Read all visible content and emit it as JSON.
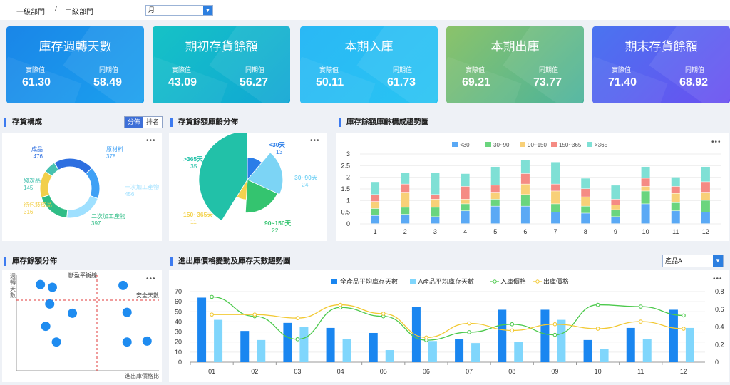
{
  "header": {
    "crumb1": "一級部門",
    "sep": "/",
    "crumb2": "二級部門",
    "period_value": "月"
  },
  "kpis": [
    {
      "title": "庫存週轉天數",
      "actual_label": "實際值",
      "actual": "61.30",
      "yoy_label": "同期值",
      "yoy": "58.49",
      "grad": [
        "#1a86e8",
        "#1aa0ee"
      ]
    },
    {
      "title": "期初存貨餘額",
      "actual_label": "實際值",
      "actual": "43.09",
      "yoy_label": "同期值",
      "yoy": "56.27",
      "grad": [
        "#16c2c6",
        "#0fa6d4"
      ]
    },
    {
      "title": "本期入庫",
      "actual_label": "實際值",
      "actual": "50.11",
      "yoy_label": "同期值",
      "yoy": "61.73",
      "grad": [
        "#2ab8f5",
        "#28c4f2"
      ]
    },
    {
      "title": "本期出庫",
      "actual_label": "實際值",
      "actual": "69.21",
      "yoy_label": "同期值",
      "yoy": "73.77",
      "grad": [
        "#8bc36a",
        "#4ab39c"
      ]
    },
    {
      "title": "期末存貨餘額",
      "actual_label": "實際值",
      "actual": "71.40",
      "yoy_label": "同期值",
      "yoy": "68.92",
      "grad": [
        "#4a74f0",
        "#6a4ff0"
      ]
    }
  ],
  "inventory_comp": {
    "title": "存貨構成",
    "tab_on": "分佈",
    "tab_off": "排名",
    "more": "•••",
    "chart_data": {
      "type": "pie",
      "variant": "donut",
      "slices": [
        {
          "name": "成品",
          "value": 476,
          "color": "#2e6fe0"
        },
        {
          "name": "原材料",
          "value": 378,
          "color": "#3fa0f5"
        },
        {
          "name": "一次加工產物",
          "value": 456,
          "color": "#9fe0ff"
        },
        {
          "name": "二次加工產物",
          "value": 397,
          "color": "#2fbd86"
        },
        {
          "name": "待包裝成品",
          "value": 316,
          "color": "#f2cf4a"
        },
        {
          "name": "殘次品",
          "value": 145,
          "color": "#47c2b0"
        }
      ]
    }
  },
  "age_dist": {
    "title": "存貨餘額庫齡分佈",
    "more": "•••",
    "chart_data": {
      "type": "pie",
      "variant": "rose",
      "slices": [
        {
          "name": "<30天",
          "value": 13,
          "color": "#2a7de8"
        },
        {
          "name": "30~90天",
          "value": 24,
          "color": "#7cd4f5"
        },
        {
          "name": "90~150天",
          "value": 22,
          "color": "#34c46f"
        },
        {
          "name": "150~365天",
          "value": 11,
          "color": "#f3d24e"
        },
        {
          "name": ">365天",
          "value": 35,
          "color": "#22c1a8"
        }
      ]
    }
  },
  "age_trend": {
    "title": "庫存餘額庫齡構成趨勢圖",
    "more": "•••",
    "chart_data": {
      "type": "bar",
      "stacked": true,
      "categories": [
        "1",
        "2",
        "3",
        "4",
        "5",
        "6",
        "7",
        "8",
        "9",
        "10",
        "11",
        "12"
      ],
      "ylim": [
        0,
        3
      ],
      "yticks": [
        "0",
        "0.5",
        "1",
        "1.5",
        "2",
        "2.5",
        "3"
      ],
      "series": [
        {
          "name": "<30",
          "color": "#5aa9f5",
          "values": [
            0.35,
            0.4,
            0.3,
            0.55,
            0.75,
            0.75,
            0.5,
            0.45,
            0.3,
            0.85,
            0.55,
            0.5
          ]
        },
        {
          "name": "30~90",
          "color": "#6ad57e",
          "values": [
            0.3,
            0.3,
            0.4,
            0.3,
            0.3,
            0.5,
            0.35,
            0.3,
            0.3,
            0.55,
            0.35,
            0.5
          ]
        },
        {
          "name": "90~150",
          "color": "#f8d078",
          "values": [
            0.3,
            0.65,
            0.35,
            0.2,
            0.3,
            0.45,
            0.55,
            0.4,
            0.2,
            0.2,
            0.4,
            0.35
          ]
        },
        {
          "name": "150~365",
          "color": "#f58b84",
          "values": [
            0.3,
            0.35,
            0.2,
            0.55,
            0.3,
            0.45,
            0.3,
            0.35,
            0.25,
            0.35,
            0.3,
            0.45
          ]
        },
        {
          "name": ">365",
          "color": "#7fe0d5",
          "values": [
            0.55,
            0.5,
            0.95,
            0.55,
            0.8,
            0.6,
            0.95,
            0.45,
            0.6,
            0.5,
            0.4,
            0.65
          ]
        }
      ]
    }
  },
  "balance_dist": {
    "title": "庫存餘額分佈",
    "more": "•••",
    "ylabel": "週轉天數",
    "xlabel": "進出庫價格比",
    "vline_label": "斷盈平衡線",
    "hline_label": "安全天數",
    "chart_data": {
      "type": "scatter",
      "points": [
        {
          "x": 0.18,
          "y": 0.93
        },
        {
          "x": 0.27,
          "y": 0.9
        },
        {
          "x": 0.25,
          "y": 0.72
        },
        {
          "x": 0.42,
          "y": 0.62
        },
        {
          "x": 0.22,
          "y": 0.48
        },
        {
          "x": 0.3,
          "y": 0.31
        },
        {
          "x": 0.8,
          "y": 0.92
        },
        {
          "x": 0.83,
          "y": 0.63
        },
        {
          "x": 0.83,
          "y": 0.31
        },
        {
          "x": 0.98,
          "y": 0.32
        }
      ]
    }
  },
  "price_trend": {
    "title": "進出庫價格變動及庫存天數趨勢圖",
    "product": "產品A",
    "more": "•••",
    "chart_data": {
      "type": "bar",
      "categories": [
        "01",
        "02",
        "03",
        "04",
        "05",
        "06",
        "07",
        "08",
        "09",
        "10",
        "11",
        "12"
      ],
      "ylim_left": [
        0,
        70
      ],
      "ylim_right": [
        0,
        0.8
      ],
      "yticks_left": [
        "0",
        "10",
        "20",
        "30",
        "40",
        "50",
        "60",
        "70"
      ],
      "yticks_right": [
        "0",
        "0.2",
        "0.4",
        "0.6",
        "0.8"
      ],
      "series": [
        {
          "name": "全產品平均庫存天數",
          "kind": "bar",
          "axis": "left",
          "color": "#1a86f0",
          "values": [
            64,
            31,
            39,
            34,
            29,
            55,
            23,
            52,
            52,
            22,
            34,
            52
          ]
        },
        {
          "name": "A產品平均庫存天數",
          "kind": "bar",
          "axis": "left",
          "color": "#80d6fc",
          "values": [
            42,
            22,
            35,
            23,
            12,
            21,
            19,
            20,
            42,
            13,
            23,
            34
          ]
        },
        {
          "name": "入庫價格",
          "kind": "line",
          "axis": "right",
          "color": "#4cc94c",
          "values": [
            0.74,
            0.52,
            0.26,
            0.62,
            0.52,
            0.25,
            0.34,
            0.43,
            0.31,
            0.65,
            0.63,
            0.53
          ]
        },
        {
          "name": "出庫價格",
          "kind": "line",
          "axis": "right",
          "color": "#f2c934",
          "values": [
            0.54,
            0.54,
            0.5,
            0.65,
            0.55,
            0.28,
            0.44,
            0.36,
            0.43,
            0.38,
            0.46,
            0.38
          ]
        }
      ]
    }
  }
}
